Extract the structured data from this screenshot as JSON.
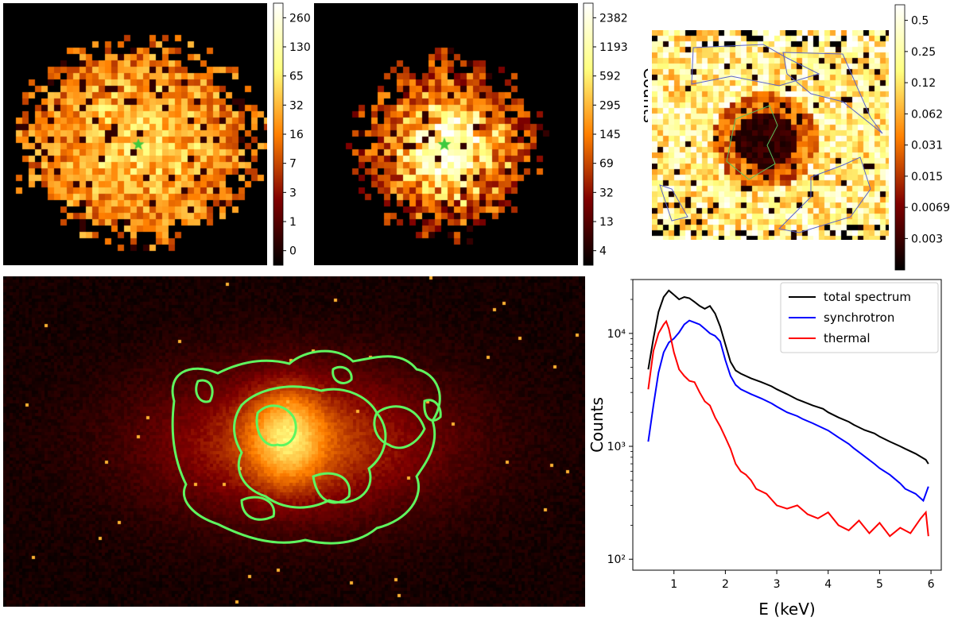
{
  "chart_data": [
    {
      "type": "heatmap",
      "colorbar": {
        "scale": "log",
        "ticks": [
          "260",
          "130",
          "65",
          "32",
          "16",
          "7",
          "3",
          "1",
          "0"
        ]
      },
      "marker": "star",
      "colors": {
        "cmap": "afmhot",
        "marker": "#3ec93e"
      }
    },
    {
      "type": "heatmap",
      "colorbar": {
        "scale": "log",
        "label": "Counts",
        "ticks": [
          "2382",
          "1193",
          "592",
          "295",
          "145",
          "69",
          "32",
          "13",
          "4"
        ]
      },
      "marker": "star",
      "colors": {
        "cmap": "afmhot",
        "marker": "#3ec93e"
      }
    },
    {
      "type": "heatmap",
      "colorbar": {
        "scale": "log",
        "ticks": [
          "0.5",
          "0.25",
          "0.12",
          "0.062",
          "0.031",
          "0.015",
          "0.0069",
          "0.003"
        ]
      },
      "regions": {
        "outer": 3,
        "inner": 1
      },
      "colors": {
        "cmap": "afmhot",
        "outer_region": "#5a63c8",
        "inner_region": "#5cc05c"
      }
    },
    {
      "type": "heatmap",
      "overlay": "contours",
      "colors": {
        "cmap": "afmhot",
        "contours": "#5ff55f"
      }
    },
    {
      "type": "line",
      "xlabel": "E (keV)",
      "ylabel": "Counts",
      "xlim": [
        0.2,
        6.2
      ],
      "ylim": [
        80,
        30000
      ],
      "yscale": "log",
      "xticks": [
        1,
        2,
        3,
        4,
        5,
        6
      ],
      "yticks": [
        {
          "value": 100,
          "label": "10²"
        },
        {
          "value": 1000,
          "label": "10³"
        },
        {
          "value": 10000,
          "label": "10⁴"
        }
      ],
      "legend": "top-right",
      "series": [
        {
          "name": "total spectrum",
          "color": "#000000",
          "x": [
            0.5,
            0.6,
            0.7,
            0.8,
            0.9,
            1.0,
            1.1,
            1.2,
            1.3,
            1.4,
            1.5,
            1.6,
            1.7,
            1.8,
            1.9,
            2.0,
            2.1,
            2.2,
            2.3,
            2.5,
            2.7,
            2.9,
            3.0,
            3.2,
            3.4,
            3.5,
            3.7,
            3.9,
            4.0,
            4.2,
            4.4,
            4.5,
            4.7,
            4.9,
            5.0,
            5.2,
            5.4,
            5.5,
            5.7,
            5.9,
            5.95
          ],
          "y": [
            4800,
            9000,
            15500,
            21000,
            24000,
            22000,
            20000,
            21000,
            20500,
            19000,
            17500,
            16500,
            17500,
            15000,
            11500,
            8000,
            5600,
            4700,
            4400,
            4000,
            3700,
            3400,
            3200,
            2900,
            2600,
            2500,
            2300,
            2150,
            2000,
            1800,
            1650,
            1550,
            1400,
            1300,
            1220,
            1100,
            1000,
            950,
            860,
            760,
            700
          ]
        },
        {
          "name": "synchrotron",
          "color": "#0000ff",
          "x": [
            0.5,
            0.6,
            0.7,
            0.8,
            0.9,
            1.0,
            1.1,
            1.2,
            1.3,
            1.4,
            1.5,
            1.6,
            1.7,
            1.8,
            1.9,
            2.0,
            2.1,
            2.2,
            2.3,
            2.5,
            2.7,
            2.9,
            3.0,
            3.2,
            3.4,
            3.5,
            3.7,
            3.9,
            4.0,
            4.2,
            4.4,
            4.5,
            4.7,
            4.9,
            5.0,
            5.2,
            5.4,
            5.5,
            5.7,
            5.85,
            5.95
          ],
          "y": [
            1100,
            2300,
            4500,
            6800,
            8300,
            9000,
            10200,
            12000,
            13000,
            12500,
            12000,
            11000,
            10000,
            9500,
            8500,
            5800,
            4200,
            3500,
            3200,
            2900,
            2650,
            2400,
            2250,
            2000,
            1850,
            1750,
            1600,
            1450,
            1380,
            1200,
            1050,
            960,
            820,
            700,
            640,
            560,
            470,
            420,
            380,
            330,
            440
          ]
        },
        {
          "name": "thermal",
          "color": "#ff0000",
          "x": [
            0.5,
            0.6,
            0.7,
            0.8,
            0.85,
            0.9,
            1.0,
            1.1,
            1.2,
            1.3,
            1.4,
            1.5,
            1.6,
            1.7,
            1.8,
            1.9,
            2.0,
            2.1,
            2.2,
            2.3,
            2.4,
            2.5,
            2.6,
            2.8,
            3.0,
            3.2,
            3.4,
            3.6,
            3.8,
            4.0,
            4.2,
            4.4,
            4.6,
            4.8,
            5.0,
            5.2,
            5.4,
            5.6,
            5.8,
            5.9,
            5.95
          ],
          "y": [
            3200,
            7000,
            10000,
            12000,
            12800,
            11000,
            6800,
            4800,
            4200,
            3800,
            3700,
            3000,
            2500,
            2300,
            1800,
            1500,
            1200,
            950,
            700,
            600,
            560,
            500,
            420,
            380,
            300,
            280,
            300,
            250,
            230,
            260,
            200,
            180,
            220,
            170,
            210,
            160,
            190,
            170,
            230,
            260,
            160
          ]
        }
      ]
    }
  ]
}
